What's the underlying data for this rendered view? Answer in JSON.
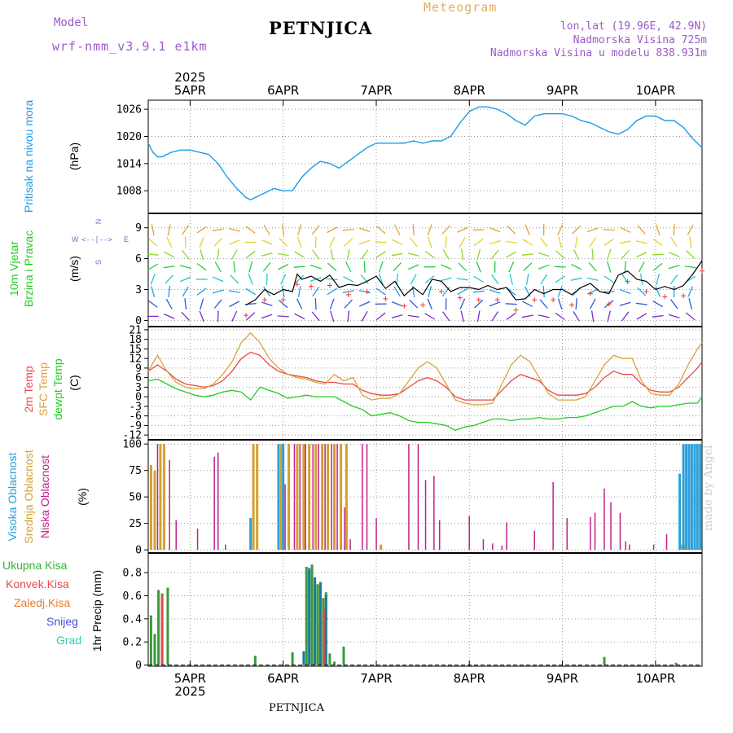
{
  "header": {
    "model_label": "Model",
    "model_name": "wrf-nmm_v3.9.1 e1km",
    "title": "PETNJICA",
    "meteogram_label": "Meteogram",
    "lonlat": "lon,lat (19.96E, 42.9N)",
    "altitude": "Nadmorska Visina 725m",
    "model_altitude": "Nadmorska Visina u modelu 838.931m"
  },
  "footer": {
    "station": "PETNJICA",
    "credit": "made by Angel"
  },
  "colors": {
    "pressure": "#1e9be6",
    "wind_speed": "#000000",
    "wind_dir": "#ff3030",
    "temp_2m": "#e84a4a",
    "temp_sfc": "#dba23a",
    "dewpoint": "#22cc22",
    "cloud_high": "#2aa0d8",
    "cloud_mid": "#d4a030",
    "cloud_low": "#c2208a",
    "precip_total": "#36b23a",
    "precip_conv": "#e84a4a",
    "precip_frz": "#f07a26",
    "precip_snow": "#4a4ad8",
    "precip_hail": "#2ec8b8",
    "label_model": "#9b59c9",
    "label_meteogram": "#e0b060",
    "panel_labels_pressure": "#1e9be6"
  },
  "time_axis": {
    "year": "2025",
    "days": [
      "5APR",
      "6APR",
      "7APR",
      "8APR",
      "9APR",
      "10APR"
    ],
    "start_day": 4.55,
    "end_day": 10.5
  },
  "chart_data": [
    {
      "type": "line",
      "panel": "pressure",
      "ylabel": "Pritisak na nivou mora",
      "unit": "(hPa)",
      "yticks": [
        "1008",
        "1014",
        "1020",
        "1026"
      ],
      "ylim": [
        1003,
        1028
      ],
      "series": [
        {
          "x": [
            4.55,
            4.6,
            4.65,
            4.7,
            4.8,
            4.9,
            5.0,
            5.1,
            5.2,
            5.3,
            5.4,
            5.5,
            5.6,
            5.65,
            5.7,
            5.8,
            5.9,
            6.0,
            6.1,
            6.2,
            6.3,
            6.4,
            6.5,
            6.6,
            6.7,
            6.8,
            6.9,
            7.0,
            7.1,
            7.2,
            7.3,
            7.4,
            7.5,
            7.6,
            7.7,
            7.8,
            7.9,
            8.0,
            8.1,
            8.2,
            8.3,
            8.4,
            8.5,
            8.6,
            8.7,
            8.8,
            8.9,
            9.0,
            9.1,
            9.2,
            9.3,
            9.4,
            9.5,
            9.6,
            9.7,
            9.8,
            9.9,
            10.0,
            10.1,
            10.2,
            10.3,
            10.4,
            10.5
          ],
          "values": [
            1018.5,
            1016.5,
            1015.5,
            1015.5,
            1016.5,
            1017,
            1017,
            1016.5,
            1016,
            1014,
            1011,
            1008.5,
            1006.5,
            1006,
            1006.5,
            1007.5,
            1008.5,
            1008,
            1008,
            1011,
            1013,
            1014.5,
            1014,
            1013,
            1014.5,
            1016,
            1017.5,
            1018.5,
            1018.5,
            1018.5,
            1018.5,
            1019,
            1018.5,
            1019,
            1019,
            1020,
            1023,
            1025.5,
            1026.5,
            1026.5,
            1026,
            1025,
            1023.5,
            1022.5,
            1024.5,
            1025,
            1025,
            1025,
            1024.5,
            1023.5,
            1023,
            1022,
            1021,
            1020.5,
            1021.5,
            1023.5,
            1024.5,
            1024.5,
            1023.5,
            1023.5,
            1022,
            1019.5,
            1017.5
          ]
        }
      ]
    },
    {
      "type": "line",
      "panel": "wind",
      "ylabel": "10m Vjetar Brzina i Pravac",
      "unit": "(m/s)",
      "compass_ns": "N",
      "compass_s": "S",
      "compass_w": "W",
      "compass_e": "E",
      "yticks": [
        "0",
        "3",
        "6",
        "9"
      ],
      "ylim": [
        -0.6,
        10.4
      ],
      "series": [
        {
          "name": "speed",
          "x": [
            5.6,
            5.7,
            5.8,
            5.9,
            6.0,
            6.1,
            6.15,
            6.2,
            6.3,
            6.4,
            6.5,
            6.6,
            6.7,
            6.8,
            6.9,
            7.0,
            7.1,
            7.2,
            7.3,
            7.4,
            7.5,
            7.6,
            7.7,
            7.8,
            7.9,
            8.0,
            8.1,
            8.2,
            8.3,
            8.4,
            8.5,
            8.6,
            8.7,
            8.8,
            8.9,
            9.0,
            9.1,
            9.2,
            9.3,
            9.4,
            9.5,
            9.6,
            9.7,
            9.8,
            9.9,
            10.0,
            10.1,
            10.2,
            10.3,
            10.4,
            10.5
          ],
          "values": [
            1.5,
            2.0,
            3.0,
            2.5,
            3.0,
            2.8,
            4.5,
            4.0,
            4.3,
            3.8,
            4.4,
            3.2,
            3.5,
            3.4,
            3.8,
            4.3,
            3.1,
            3.8,
            2.4,
            3.2,
            2.5,
            4.0,
            3.8,
            2.8,
            3.2,
            3.2,
            3.0,
            3.4,
            3.0,
            3.2,
            2.0,
            2.1,
            3.0,
            2.6,
            3.0,
            3.0,
            2.5,
            3.2,
            3.6,
            2.8,
            2.6,
            4.4,
            4.8,
            4.0,
            3.8,
            3.0,
            3.3,
            3.0,
            3.4,
            4.5,
            5.8
          ]
        }
      ]
    },
    {
      "type": "line",
      "panel": "temperature",
      "ylabel_2m": "2m Temp",
      "ylabel_sfc": "SFC Temp",
      "ylabel_dew": "dewpt Temp",
      "unit": "(C)",
      "yticks": [
        "-12",
        "-9",
        "-6",
        "-3",
        "0",
        "3",
        "6",
        "9",
        "12",
        "15",
        "18",
        "21"
      ],
      "ylim": [
        -13.5,
        22
      ],
      "x": [
        4.55,
        4.65,
        4.75,
        4.85,
        4.95,
        5.05,
        5.15,
        5.25,
        5.35,
        5.45,
        5.55,
        5.65,
        5.75,
        5.85,
        5.95,
        6.05,
        6.15,
        6.25,
        6.35,
        6.45,
        6.55,
        6.65,
        6.75,
        6.85,
        6.95,
        7.05,
        7.15,
        7.25,
        7.35,
        7.45,
        7.55,
        7.65,
        7.75,
        7.85,
        7.95,
        8.05,
        8.15,
        8.25,
        8.35,
        8.45,
        8.55,
        8.65,
        8.75,
        8.85,
        8.95,
        9.05,
        9.15,
        9.25,
        9.35,
        9.45,
        9.55,
        9.65,
        9.75,
        9.85,
        9.95,
        10.05,
        10.15,
        10.25,
        10.35,
        10.45,
        10.5
      ],
      "series": [
        {
          "name": "2m",
          "values": [
            8,
            10,
            8,
            5.5,
            4,
            3.5,
            3,
            3.5,
            5,
            8,
            12,
            14,
            13,
            10,
            8,
            7,
            6.5,
            6,
            5,
            4.5,
            4.5,
            4,
            4,
            2,
            1,
            0.5,
            0.5,
            1,
            3,
            5,
            6,
            5,
            3,
            0,
            -1,
            -1,
            -1,
            -1,
            2,
            5,
            7,
            6,
            5,
            2,
            0.5,
            0.5,
            0.5,
            1,
            3,
            6,
            8,
            7,
            7,
            4,
            2,
            1.5,
            1.5,
            3,
            6,
            9,
            11
          ]
        },
        {
          "name": "SFC",
          "values": [
            8,
            13,
            8,
            4.5,
            3,
            2.5,
            2.5,
            4,
            7,
            11,
            17,
            20,
            17,
            12,
            9,
            7,
            6,
            5.5,
            4.5,
            4,
            7,
            5,
            6,
            0.5,
            -1,
            -0.5,
            -0.5,
            1,
            5,
            9,
            11,
            9,
            4,
            -1,
            -2,
            -2.5,
            -2.5,
            -2,
            4,
            10,
            13,
            11,
            6,
            1,
            -1,
            -1,
            -1,
            0,
            5,
            10,
            13,
            12,
            12,
            5,
            1,
            0.5,
            0.5,
            4,
            10,
            15,
            17
          ]
        },
        {
          "name": "dewpt",
          "values": [
            5,
            5.5,
            4,
            2.5,
            1.5,
            0.5,
            0,
            0.5,
            1.5,
            2,
            1.5,
            -1,
            3,
            2,
            1,
            -0.5,
            0,
            0.5,
            0,
            0,
            0,
            -1.5,
            -3,
            -4,
            -6,
            -5.5,
            -5,
            -6,
            -7.5,
            -8,
            -8,
            -8.5,
            -9,
            -10.5,
            -9.5,
            -9,
            -8,
            -7,
            -7,
            -7.5,
            -7,
            -7,
            -6.5,
            -7,
            -7,
            -6.5,
            -6.5,
            -6,
            -5,
            -4,
            -3,
            -3,
            -1.5,
            -3,
            -3.5,
            -3,
            -3,
            -2.5,
            -2,
            -2,
            0
          ]
        }
      ]
    },
    {
      "type": "bar",
      "panel": "clouds",
      "ylabel_high": "Visoka Oblacnost",
      "ylabel_mid": "Srednja Oblacnost",
      "ylabel_low": "Niska Oblacnost",
      "unit": "(%)",
      "yticks": [
        "0",
        "25",
        "50",
        "75",
        "100"
      ],
      "ylim": [
        -3,
        104
      ],
      "series": [
        {
          "name": "Niska",
          "x": [
            4.62,
            4.65,
            4.72,
            4.78,
            4.85,
            5.08,
            5.26,
            5.3,
            5.38,
            5.95,
            6.02,
            6.12,
            6.18,
            6.24,
            6.32,
            6.38,
            6.45,
            6.52,
            6.58,
            6.62,
            6.66,
            6.72,
            6.85,
            6.9,
            7.0,
            7.35,
            7.45,
            7.53,
            7.62,
            7.68,
            8.0,
            8.15,
            8.25,
            8.35,
            8.4,
            8.7,
            8.9,
            9.05,
            9.3,
            9.35,
            9.45,
            9.52,
            9.62,
            9.68,
            9.72,
            9.98,
            10.12
          ],
          "values": [
            18,
            100,
            100,
            85,
            28,
            20,
            88,
            92,
            5,
            60,
            62,
            100,
            100,
            100,
            100,
            100,
            100,
            100,
            100,
            100,
            40,
            10,
            100,
            100,
            30,
            100,
            100,
            66,
            70,
            28,
            32,
            10,
            6,
            4,
            26,
            18,
            64,
            30,
            31,
            35,
            58,
            45,
            35,
            8,
            5,
            5,
            15
          ]
        },
        {
          "name": "Srednja",
          "x": [
            4.58,
            4.62,
            4.68,
            4.72,
            5.68,
            5.72,
            5.95,
            5.98,
            6.06,
            6.15,
            6.22,
            6.28,
            6.35,
            6.42,
            6.48,
            6.55,
            6.62,
            6.68,
            7.05,
            10.28,
            10.32
          ],
          "values": [
            80,
            75,
            100,
            100,
            100,
            100,
            100,
            100,
            100,
            100,
            100,
            100,
            100,
            100,
            100,
            100,
            100,
            100,
            5,
            5,
            5
          ]
        },
        {
          "name": "Visoka",
          "x": [
            5.65,
            5.95,
            6.0,
            10.26,
            10.3,
            10.33,
            10.36,
            10.39,
            10.42,
            10.45,
            10.48
          ],
          "values": [
            30,
            100,
            100,
            72,
            100,
            100,
            100,
            100,
            100,
            100,
            100
          ]
        }
      ]
    },
    {
      "type": "bar",
      "panel": "precip",
      "ylabel": "1hr Precip (mm)",
      "legend": [
        "Ukupna Kisa",
        "Konvek.Kisa",
        "Zaledj.Kisa",
        "Snijeg",
        "Grad"
      ],
      "yticks": [
        "0",
        "0.2",
        "0.4",
        "0.6",
        "0.8"
      ],
      "ylim": [
        -0.01,
        0.97
      ],
      "series": [
        {
          "name": "Ukupna Kisa",
          "x": [
            4.58,
            4.62,
            4.66,
            4.7,
            4.76,
            5.7,
            6.1,
            6.25,
            6.28,
            6.31,
            6.34,
            6.37,
            6.4,
            6.43,
            6.46,
            6.5,
            6.55,
            6.65,
            9.45,
            10.22
          ],
          "values": [
            0.43,
            0.27,
            0.65,
            0.62,
            0.67,
            0.08,
            0.11,
            0.85,
            0.82,
            0.87,
            0.74,
            0.7,
            0.71,
            0.58,
            0.63,
            0.1,
            0.03,
            0.16,
            0.07,
            0.02
          ]
        },
        {
          "name": "Konvek.Kisa",
          "x": [
            4.7,
            6.4,
            6.44
          ],
          "values": [
            0.6,
            0.35,
            0.48
          ]
        },
        {
          "name": "Snijeg",
          "x": [
            6.22,
            6.28,
            6.34,
            6.4,
            6.46
          ],
          "values": [
            0.12,
            0.84,
            0.76,
            0.72,
            0.6
          ]
        }
      ]
    }
  ]
}
